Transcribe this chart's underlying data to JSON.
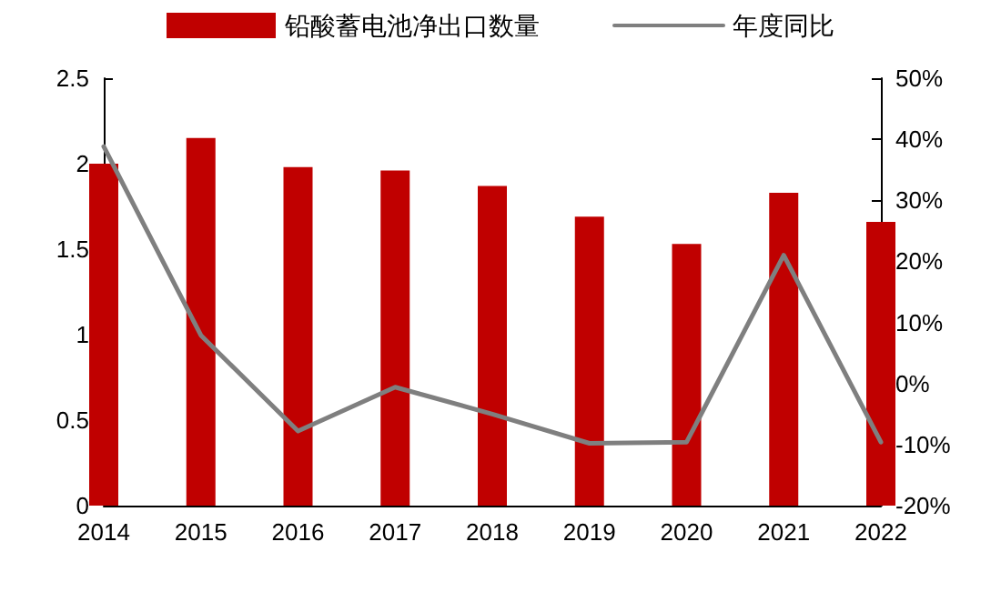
{
  "chart_data": {
    "type": "bar",
    "categories": [
      "2014",
      "2015",
      "2016",
      "2017",
      "2018",
      "2019",
      "2020",
      "2021",
      "2022"
    ],
    "series": [
      {
        "name": "铅酸蓄电池净出口数量",
        "color": "#c00000",
        "values": [
          2.0,
          2.15,
          1.98,
          1.96,
          1.87,
          1.69,
          1.53,
          1.83,
          1.66
        ]
      },
      {
        "name": "年度同比",
        "type": "line",
        "axis": "y2",
        "color": "#7f7f7f",
        "marker": "none",
        "values": [
          38.8,
          7.9,
          -7.8,
          -0.6,
          -5,
          -9.8,
          -9.6,
          21,
          -9.6
        ]
      }
    ],
    "ylim": [
      0,
      2.5
    ],
    "yticks": [
      0,
      0.5,
      1,
      1.5,
      2,
      2.5
    ],
    "y2lim": [
      -20,
      50
    ],
    "y2ticks": [
      {
        "value": -20,
        "label": "-20%"
      },
      {
        "value": -10,
        "label": "-10%"
      },
      {
        "value": 0,
        "label": "0%"
      },
      {
        "value": 10,
        "label": "10%"
      },
      {
        "value": 20,
        "label": "20%"
      },
      {
        "value": 30,
        "label": "30%"
      },
      {
        "value": 40,
        "label": "40%"
      },
      {
        "value": 50,
        "label": "50%"
      }
    ],
    "grid": false,
    "legend": "top"
  }
}
